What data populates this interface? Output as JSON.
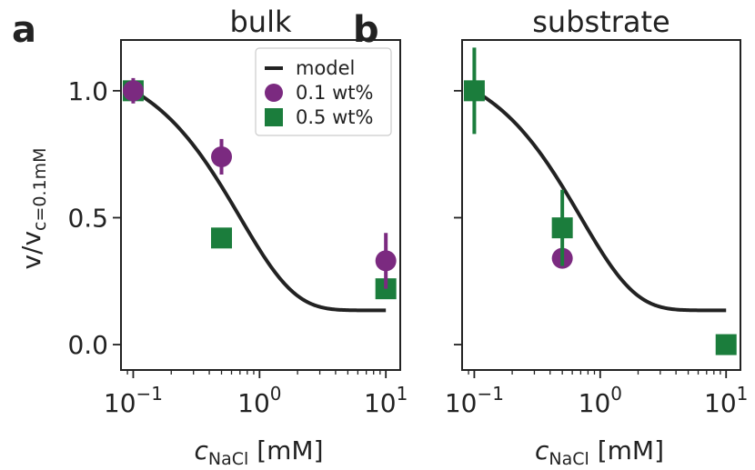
{
  "colors": {
    "model": "#222222",
    "wt01": "#7b2a80",
    "wt05": "#1b7d3c",
    "axis": "#222222"
  },
  "chart_data": [
    {
      "type": "scatter",
      "panel_letter": "a",
      "title": "bulk",
      "xlabel_symbol": "c",
      "xlabel_subscript": "NaCl",
      "xlabel_unit": "[mM]",
      "ylabel_main": "v/v",
      "ylabel_subscript": "c=0.1mM",
      "xscale": "log",
      "xlim": [
        0.08,
        13
      ],
      "ylim": [
        -0.1,
        1.2
      ],
      "xticks": [
        {
          "value": 0.1,
          "base": "10",
          "exp": "−1"
        },
        {
          "value": 1,
          "base": "10",
          "exp": "0"
        },
        {
          "value": 10,
          "base": "10",
          "exp": "1"
        }
      ],
      "yticks": [
        {
          "value": 0.0,
          "label": "0.0"
        },
        {
          "value": 0.5,
          "label": "0.5"
        },
        {
          "value": 1.0,
          "label": "1.0"
        }
      ],
      "model": {
        "name": "model",
        "x_range": [
          0.1,
          10
        ]
      },
      "series": [
        {
          "name": "0.1 wt%",
          "marker": "circle",
          "x": [
            0.1,
            0.5,
            10
          ],
          "y": [
            1.0,
            0.74,
            0.33
          ],
          "err": [
            0.05,
            0.07,
            0.11
          ]
        },
        {
          "name": "0.5 wt%",
          "marker": "square",
          "x": [
            0.1,
            0.5,
            10
          ],
          "y": [
            1.0,
            0.42,
            0.22
          ],
          "err": [
            0.0,
            0.0,
            0.0
          ]
        }
      ],
      "legend": {
        "position": "top-right",
        "entries": [
          "model",
          "0.1 wt%",
          "0.5 wt%"
        ]
      }
    },
    {
      "type": "scatter",
      "panel_letter": "b",
      "title": "substrate",
      "xlabel_symbol": "c",
      "xlabel_subscript": "NaCl",
      "xlabel_unit": "[mM]",
      "xscale": "log",
      "xlim": [
        0.08,
        13
      ],
      "ylim": [
        -0.1,
        1.2
      ],
      "xticks": [
        {
          "value": 0.1,
          "base": "10",
          "exp": "−1"
        },
        {
          "value": 1,
          "base": "10",
          "exp": "0"
        },
        {
          "value": 10,
          "base": "10",
          "exp": "1"
        }
      ],
      "yticks": [
        {
          "value": 0.0,
          "label": ""
        },
        {
          "value": 0.5,
          "label": ""
        },
        {
          "value": 1.0,
          "label": ""
        }
      ],
      "model": {
        "name": "model",
        "x_range": [
          0.1,
          10
        ]
      },
      "series": [
        {
          "name": "0.1 wt%",
          "marker": "circle",
          "x": [
            0.1,
            0.5
          ],
          "y": [
            1.0,
            0.34
          ],
          "err": [
            0.0,
            0.03
          ]
        },
        {
          "name": "0.5 wt%",
          "marker": "square",
          "x": [
            0.1,
            0.5,
            10
          ],
          "y": [
            1.0,
            0.46,
            0.0
          ],
          "err": [
            0.17,
            0.15,
            0.0
          ]
        }
      ]
    }
  ]
}
